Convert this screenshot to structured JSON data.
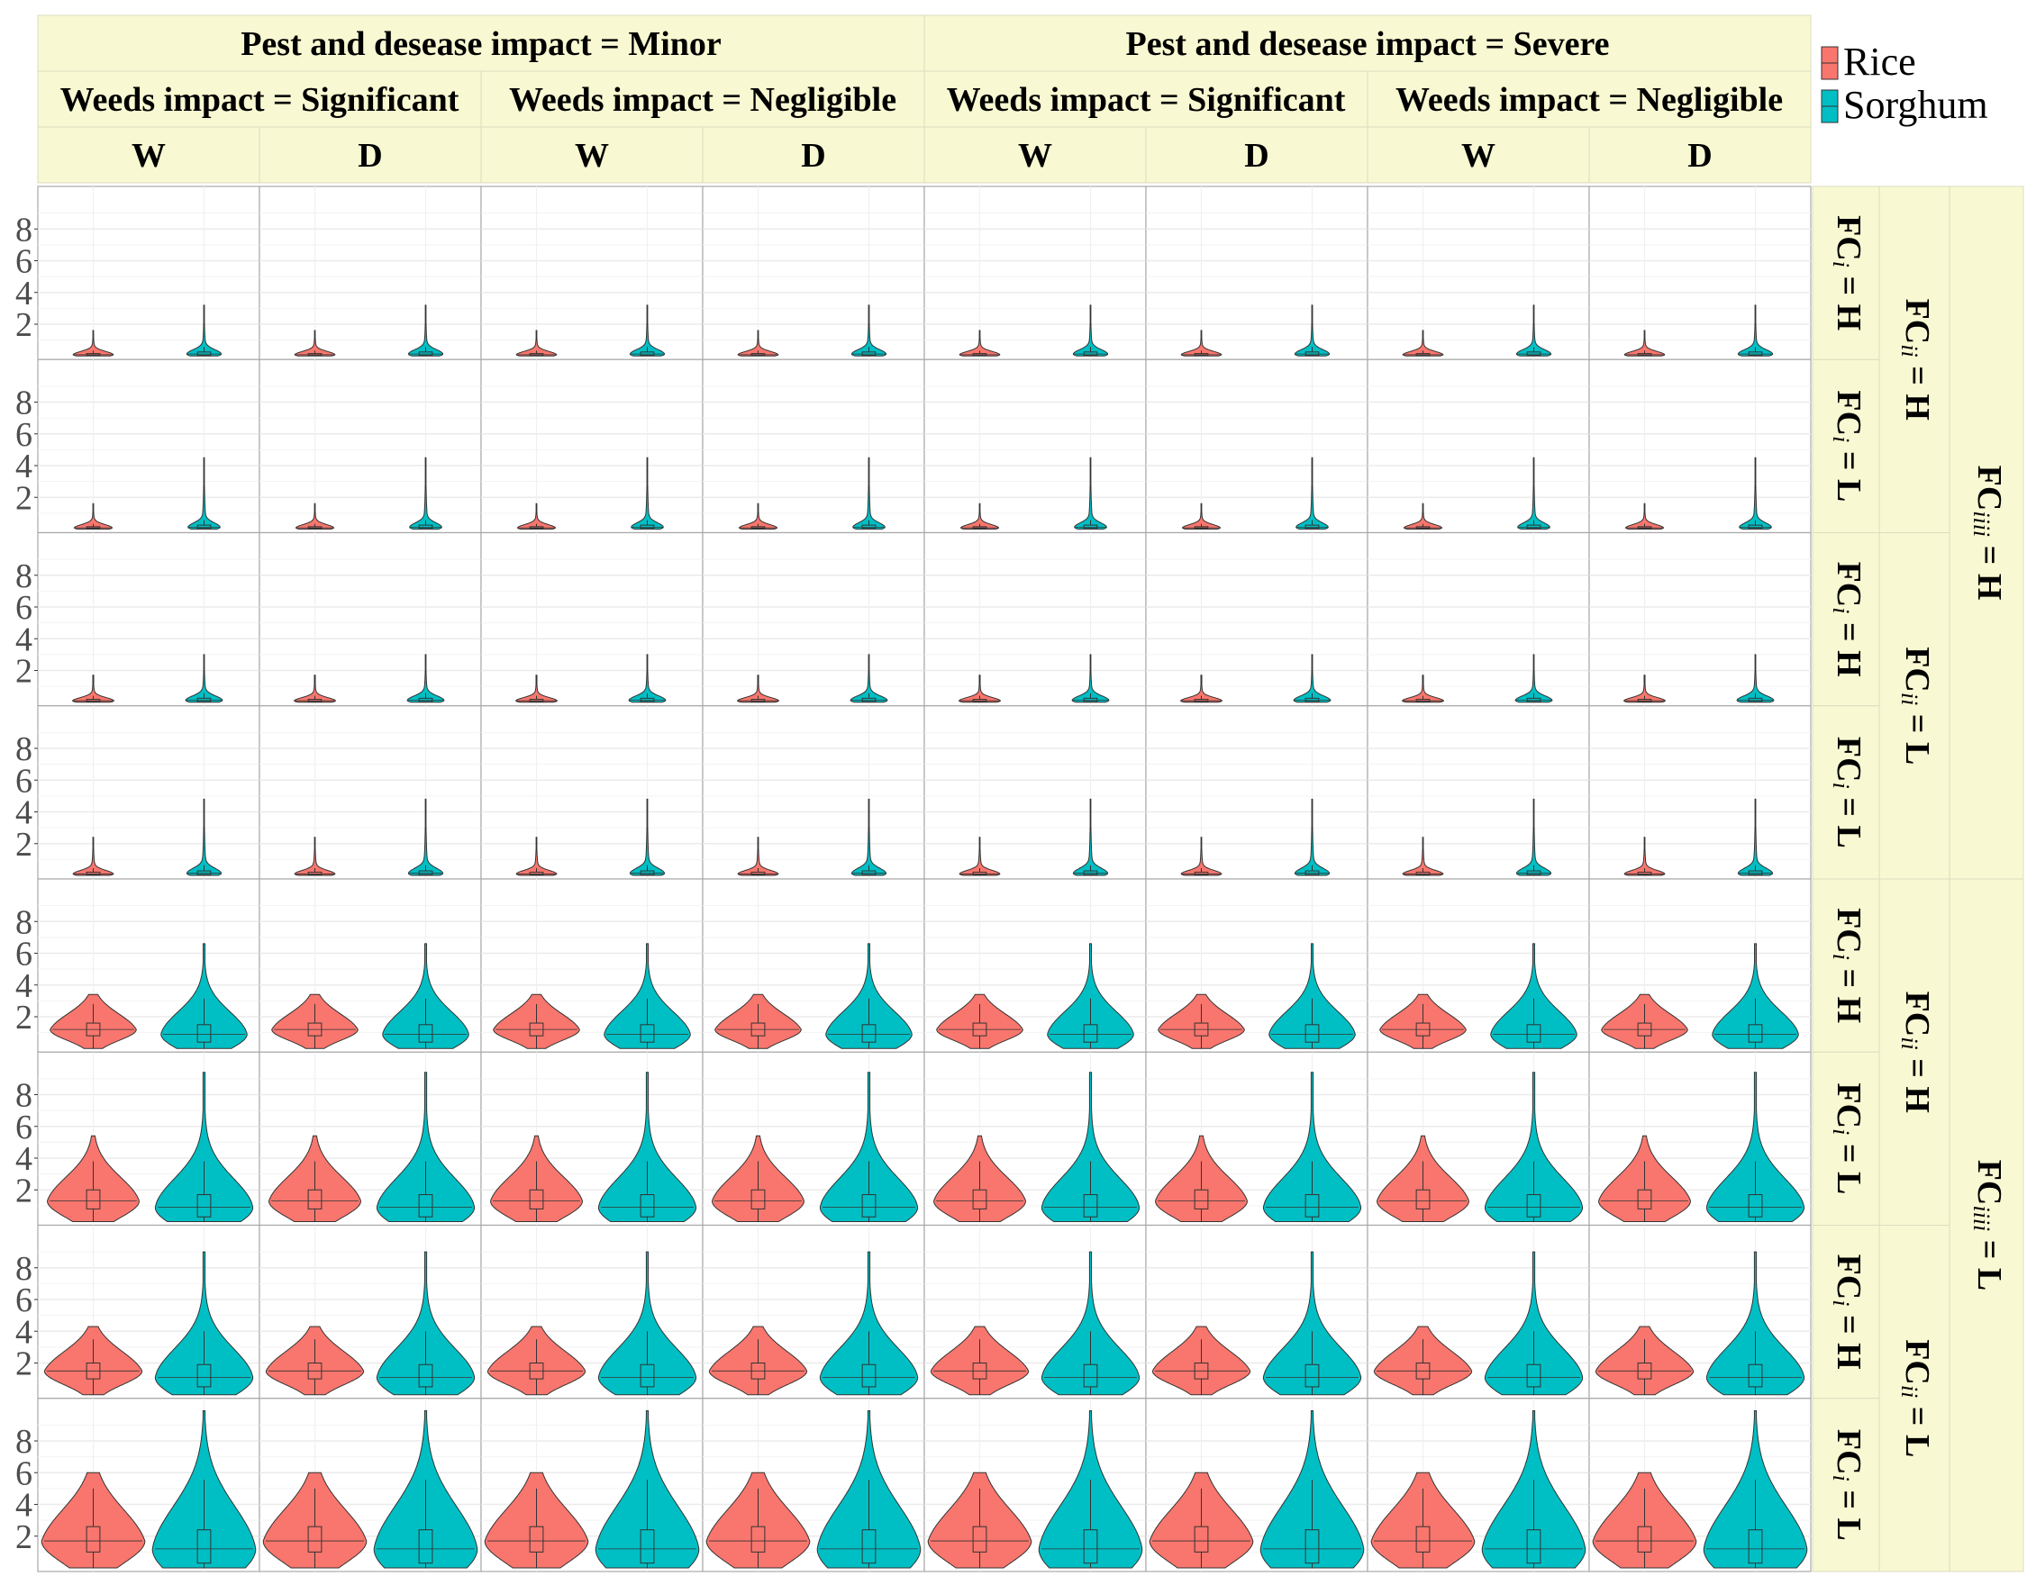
{
  "chart_data": {
    "type": "violin",
    "title": "",
    "xlabel": "",
    "ylabel": "",
    "y_ticks": [
      2,
      4,
      6,
      8
    ],
    "y_ticks_label": [
      "2",
      "4",
      "6",
      "8"
    ],
    "ylim": [
      0,
      10
    ],
    "grid": true,
    "legend_position": "right",
    "facets": {
      "top_level_1": {
        "prefix": "Pest and desease impact = ",
        "values": [
          "Minor",
          "Severe"
        ]
      },
      "top_level_2": {
        "prefix": "Weeds impact = ",
        "values": [
          "Significant",
          "Negligible"
        ]
      },
      "top_level_3": [
        "W",
        "D",
        "W",
        "D",
        "W",
        "D",
        "W",
        "D"
      ],
      "right_level_1": {
        "base": "FC",
        "subscript": "i",
        "suffix": " = ",
        "values": [
          "H",
          "L",
          "H",
          "L",
          "H",
          "L",
          "H",
          "L"
        ]
      },
      "right_level_2": {
        "base": "FC",
        "subscript": "ii",
        "suffix": " = ",
        "values": [
          "H",
          "L",
          "H",
          "L"
        ]
      },
      "right_level_3": {
        "base": "FC",
        "subscript": "iiii",
        "suffix": " = ",
        "values": [
          "H",
          "L"
        ]
      }
    },
    "series": [
      {
        "name": "Rice",
        "color": "#F8766D"
      },
      {
        "name": "Sorghum",
        "color": "#00BFC4"
      }
    ],
    "row_profiles": [
      {
        "rice": {
          "median": 0.08,
          "q1": 0.03,
          "q3": 0.15,
          "max": 1.6,
          "min": 0.0,
          "spread": 0.35
        },
        "sorghum": {
          "median": 0.12,
          "q1": 0.04,
          "q3": 0.25,
          "max": 3.2,
          "min": 0.0,
          "spread": 0.3
        }
      },
      {
        "rice": {
          "median": 0.08,
          "q1": 0.03,
          "q3": 0.15,
          "max": 1.6,
          "min": 0.0,
          "spread": 0.33
        },
        "sorghum": {
          "median": 0.12,
          "q1": 0.04,
          "q3": 0.25,
          "max": 4.5,
          "min": 0.0,
          "spread": 0.28
        }
      },
      {
        "rice": {
          "median": 0.09,
          "q1": 0.03,
          "q3": 0.18,
          "max": 1.7,
          "min": 0.0,
          "spread": 0.36
        },
        "sorghum": {
          "median": 0.12,
          "q1": 0.04,
          "q3": 0.25,
          "max": 3.0,
          "min": 0.0,
          "spread": 0.32
        }
      },
      {
        "rice": {
          "median": 0.09,
          "q1": 0.03,
          "q3": 0.2,
          "max": 2.4,
          "min": 0.0,
          "spread": 0.35
        },
        "sorghum": {
          "median": 0.13,
          "q1": 0.04,
          "q3": 0.28,
          "max": 4.8,
          "min": 0.0,
          "spread": 0.3
        }
      },
      {
        "rice": {
          "median": 1.2,
          "q1": 0.8,
          "q3": 1.6,
          "max": 3.4,
          "min": 0.0,
          "spread": 0.75
        },
        "sorghum": {
          "median": 0.9,
          "q1": 0.4,
          "q3": 1.5,
          "max": 6.6,
          "min": 0.0,
          "spread": 0.75
        }
      },
      {
        "rice": {
          "median": 1.3,
          "q1": 0.8,
          "q3": 2.0,
          "max": 5.4,
          "min": 0.0,
          "spread": 0.8
        },
        "sorghum": {
          "median": 0.9,
          "q1": 0.3,
          "q3": 1.7,
          "max": 9.4,
          "min": 0.0,
          "spread": 0.85
        }
      },
      {
        "rice": {
          "median": 1.5,
          "q1": 1.0,
          "q3": 2.0,
          "max": 4.3,
          "min": 0.0,
          "spread": 0.85
        },
        "sorghum": {
          "median": 1.1,
          "q1": 0.5,
          "q3": 1.9,
          "max": 9.0,
          "min": 0.0,
          "spread": 0.85
        }
      },
      {
        "rice": {
          "median": 1.7,
          "q1": 1.0,
          "q3": 2.6,
          "max": 6.0,
          "min": 0.0,
          "spread": 0.9
        },
        "sorghum": {
          "median": 1.2,
          "q1": 0.3,
          "q3": 2.4,
          "max": 9.9,
          "min": 0.0,
          "spread": 0.9
        }
      }
    ]
  }
}
